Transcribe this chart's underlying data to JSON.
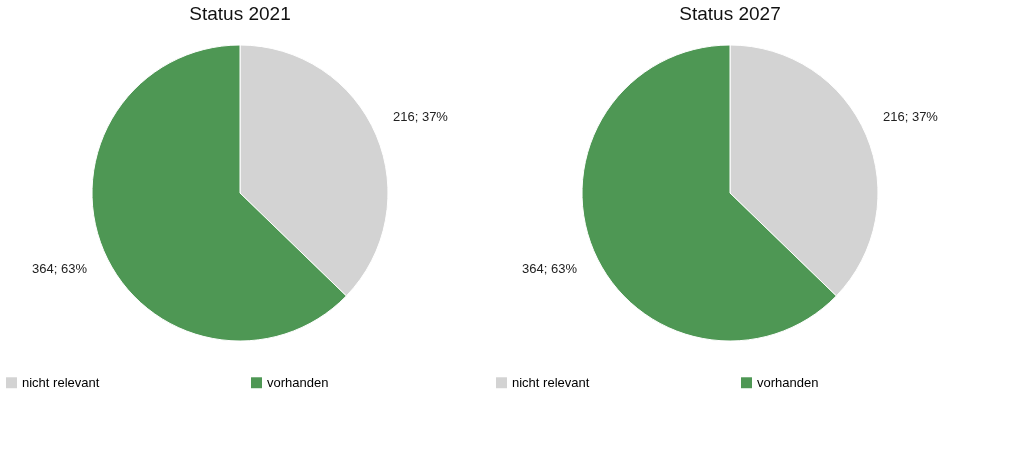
{
  "chart_data": [
    {
      "type": "pie",
      "title": "Status 2021",
      "categories": [
        "nicht relevant",
        "vorhanden"
      ],
      "values": [
        216,
        364
      ],
      "colors": [
        "#d3d3d3",
        "#4e9754"
      ],
      "value_labels": [
        "216; 37%",
        "364; 63%"
      ],
      "legend": "bottom"
    },
    {
      "type": "pie",
      "title": "Status 2027",
      "categories": [
        "nicht relevant",
        "vorhanden"
      ],
      "values": [
        216,
        364
      ],
      "colors": [
        "#d3d3d3",
        "#4e9754"
      ],
      "value_labels": [
        "216; 37%",
        "364; 63%"
      ],
      "legend": "bottom"
    }
  ]
}
